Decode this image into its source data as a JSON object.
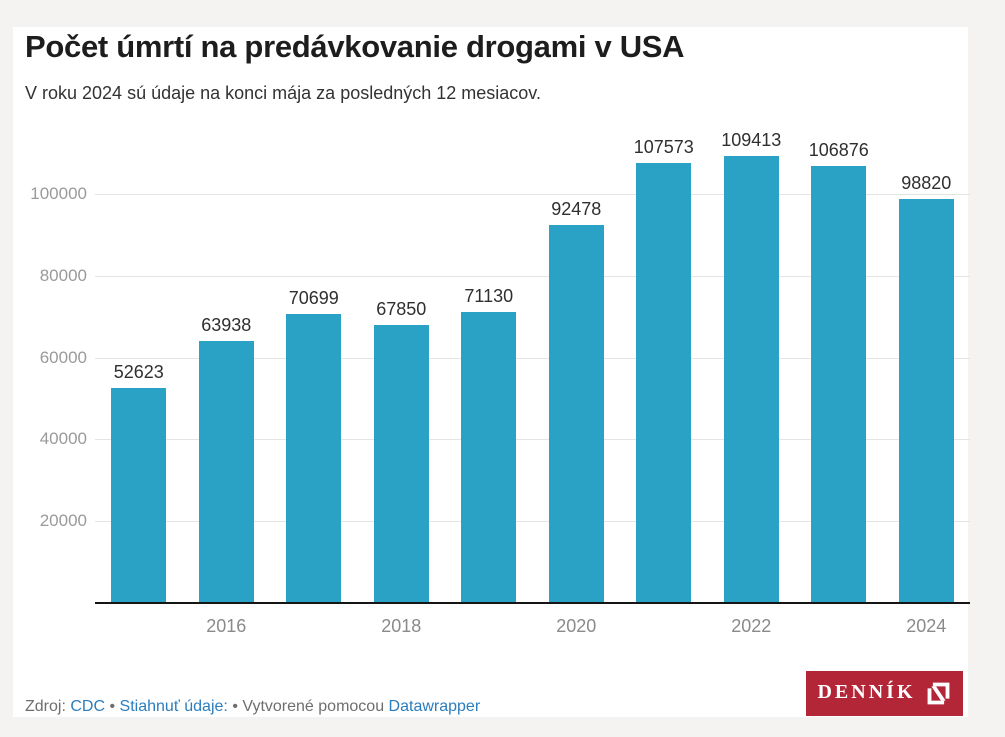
{
  "header": {
    "title": "Počet úmrtí na predávkovanie drogami v USA",
    "subtitle": "V roku 2024 sú údaje na konci mája za posledných 12 mesiacov."
  },
  "chart_data": {
    "type": "bar",
    "title": "Počet úmrtí na predávkovanie drogami v USA",
    "subtitle": "V roku 2024 sú údaje na konci mája za posledných 12 mesiacov.",
    "categories": [
      "2015",
      "2016",
      "2017",
      "2018",
      "2019",
      "2020",
      "2021",
      "2022",
      "2023",
      "2024"
    ],
    "values": [
      52623,
      63938,
      70699,
      67850,
      71130,
      92478,
      107573,
      109413,
      106876,
      98820
    ],
    "value_labels_shown": true,
    "x_tick_labels": [
      "2016",
      "2018",
      "2020",
      "2022",
      "2024"
    ],
    "y_ticks": [
      20000,
      40000,
      60000,
      80000,
      100000
    ],
    "ylim": [
      0,
      110000
    ],
    "xlabel": "",
    "ylabel": "",
    "grid": "horizontal",
    "legend": "none"
  },
  "footer": {
    "source_label": "Zdroj:",
    "source_link": "CDC",
    "separator": "•",
    "download_link": "Stiahnuť údaje:",
    "credit_text": "Vytvorené pomocou",
    "credit_link": "Datawrapper"
  },
  "logo": {
    "text": "DENNÍK",
    "mark": "n-bracket-mark"
  },
  "colors": {
    "page_bg": "#f4f3f2",
    "card_bg": "#ffffff",
    "title_color": "#1d1d1d",
    "subtitle_color": "#333333",
    "bar_color": "#29a2c6",
    "grid_color": "#e4e4e4",
    "axis_color": "#151515",
    "ytick_color": "#9a9a9a",
    "xtick_color": "#8a8a8a",
    "value_label_color": "#2f2f2f",
    "footer_gray": "#6e6e6e",
    "link_color": "#2b7dbd",
    "logo_bg": "#b22638"
  }
}
